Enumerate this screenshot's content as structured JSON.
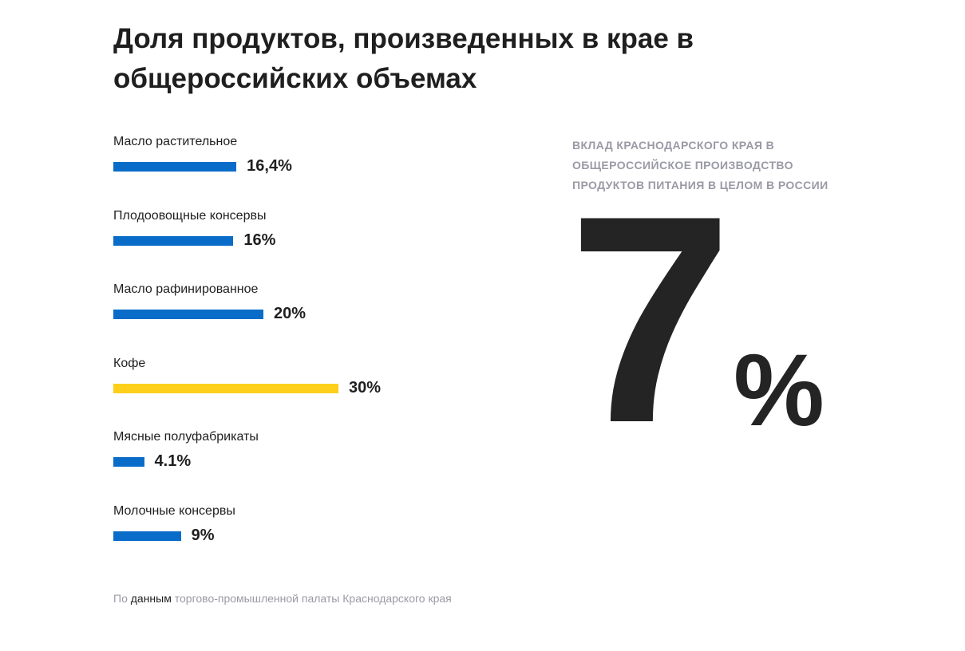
{
  "title": "Доля продуктов, произведенных в крае в общероссийских объемах",
  "colors": {
    "default_bar": "#0a6cc9",
    "highlight_bar": "#fdcf1a",
    "text": "#1f1f1f",
    "muted": "#9a9aa6"
  },
  "chart_data": {
    "type": "bar",
    "orientation": "horizontal",
    "title": "Доля продуктов, произведенных в крае в общероссийских объемах",
    "xlabel": "",
    "ylabel": "",
    "grid": false,
    "legend": "none",
    "categories": [
      "Масло растительное",
      "Плодоовощные консервы",
      "Масло рафинированное",
      "Кофе",
      "Мясные полуфабрикаты",
      "Молочные консервы"
    ],
    "values": [
      16.4,
      16,
      20,
      30,
      4.1,
      9
    ],
    "value_labels": [
      "16,4%",
      "16%",
      "20%",
      "30%",
      "4.1%",
      "9%"
    ],
    "highlight": [
      false,
      false,
      false,
      true,
      false,
      false
    ],
    "xlim": [
      0,
      30
    ]
  },
  "side_stat": {
    "caption": "ВКЛАД КРАСНОДАРСКОГО КРАЯ В ОБЩЕРОССИЙСКОЕ ПРОИЗВОДСТВО ПРОДУКТОВ ПИТАНИЯ В ЦЕЛОМ В РОССИИ",
    "value": "7",
    "unit": "%"
  },
  "source": {
    "prefix": "По ",
    "link_text": "данным",
    "suffix": " торгово-промышленной палаты Краснодарского края"
  }
}
